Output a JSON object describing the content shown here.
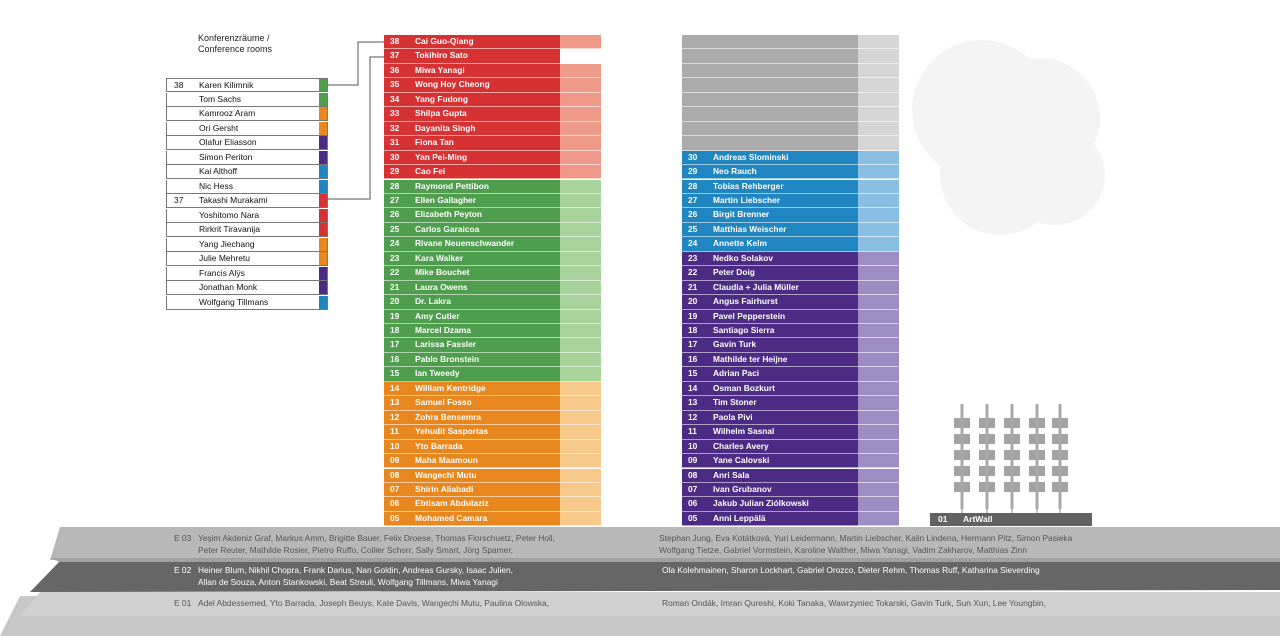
{
  "legend": {
    "title_de": "Konferenzräume /",
    "title_en": "Conference rooms",
    "rows": [
      {
        "num": "38",
        "name": "Karen Kilimnik",
        "color": "#4f9e4d"
      },
      {
        "num": "",
        "name": "Tom Sachs",
        "color": "#4f9e4d"
      },
      {
        "num": "",
        "name": "Kamrooz Aram",
        "color": "#e8871e"
      },
      {
        "num": "",
        "name": "Ori Gersht",
        "color": "#e8871e"
      },
      {
        "num": "",
        "name": "Olafur Eliasson",
        "color": "#4b2b83"
      },
      {
        "num": "",
        "name": "Simon Periton",
        "color": "#4b2b83"
      },
      {
        "num": "",
        "name": "Kai Althoff",
        "color": "#1f86c2"
      },
      {
        "num": "",
        "name": "Nic Hess",
        "color": "#1f86c2"
      },
      {
        "num": "37",
        "name": "Takashi Murakami",
        "color": "#d63234"
      },
      {
        "num": "",
        "name": "Yoshitomo Nara",
        "color": "#d63234"
      },
      {
        "num": "",
        "name": "Rirkrit Tiravanija",
        "color": "#d63234"
      },
      {
        "num": "",
        "name": "Yang Jiechang",
        "color": "#e8871e"
      },
      {
        "num": "",
        "name": "Julie Mehretu",
        "color": "#e8871e"
      },
      {
        "num": "",
        "name": "Francis Alÿs",
        "color": "#4b2b83"
      },
      {
        "num": "",
        "name": "Jonathan Monk",
        "color": "#4b2b83"
      },
      {
        "num": "",
        "name": "Wolfgang Tillmans",
        "color": "#1f86c2"
      }
    ]
  },
  "tower_left": [
    {
      "num": "38",
      "name": "Cai Guo-Qiang",
      "color": "#d63234",
      "tail": "#ef9a88"
    },
    {
      "num": "37",
      "name": "Tokihiro Sato",
      "color": "#d63234",
      "tail": "#ffffff"
    },
    {
      "num": "36",
      "name": "Miwa Yanagi",
      "color": "#d63234",
      "tail": "#ef9a88"
    },
    {
      "num": "35",
      "name": "Wong Hoy Cheong",
      "color": "#d63234",
      "tail": "#ef9a88"
    },
    {
      "num": "34",
      "name": "Yang Fudong",
      "color": "#d63234",
      "tail": "#ef9a88"
    },
    {
      "num": "33",
      "name": "Shilpa Gupta",
      "color": "#d63234",
      "tail": "#ef9a88"
    },
    {
      "num": "32",
      "name": "Dayanita Singh",
      "color": "#d63234",
      "tail": "#ef9a88"
    },
    {
      "num": "31",
      "name": "Fiona Tan",
      "color": "#d63234",
      "tail": "#ef9a88"
    },
    {
      "num": "30",
      "name": "Yan Pei-Ming",
      "color": "#d63234",
      "tail": "#ef9a88"
    },
    {
      "num": "29",
      "name": "Cao Fei",
      "color": "#d63234",
      "tail": "#ef9a88"
    },
    {
      "num": "28",
      "name": "Raymond Pettibon",
      "color": "#4f9e4d",
      "tail": "#a8d39a"
    },
    {
      "num": "27",
      "name": "Ellen Gallagher",
      "color": "#4f9e4d",
      "tail": "#a8d39a"
    },
    {
      "num": "26",
      "name": "Elizabeth Peyton",
      "color": "#4f9e4d",
      "tail": "#a8d39a"
    },
    {
      "num": "25",
      "name": "Carlos Garaicoa",
      "color": "#4f9e4d",
      "tail": "#a8d39a"
    },
    {
      "num": "24",
      "name": "Rivane Neuenschwander",
      "color": "#4f9e4d",
      "tail": "#a8d39a"
    },
    {
      "num": "23",
      "name": "Kara Walker",
      "color": "#4f9e4d",
      "tail": "#a8d39a"
    },
    {
      "num": "22",
      "name": "Mike Bouchet",
      "color": "#4f9e4d",
      "tail": "#a8d39a"
    },
    {
      "num": "21",
      "name": "Laura Owens",
      "color": "#4f9e4d",
      "tail": "#a8d39a"
    },
    {
      "num": "20",
      "name": "Dr. Lakra",
      "color": "#4f9e4d",
      "tail": "#a8d39a"
    },
    {
      "num": "19",
      "name": "Amy Cutler",
      "color": "#4f9e4d",
      "tail": "#a8d39a"
    },
    {
      "num": "18",
      "name": "Marcel Dzama",
      "color": "#4f9e4d",
      "tail": "#a8d39a"
    },
    {
      "num": "17",
      "name": "Larissa Fassler",
      "color": "#4f9e4d",
      "tail": "#a8d39a"
    },
    {
      "num": "16",
      "name": "Pablo Bronstein",
      "color": "#4f9e4d",
      "tail": "#a8d39a"
    },
    {
      "num": "15",
      "name": "Ian Tweedy",
      "color": "#4f9e4d",
      "tail": "#a8d39a"
    },
    {
      "num": "14",
      "name": "William Kentridge",
      "color": "#e8871e",
      "tail": "#f7c98a"
    },
    {
      "num": "13",
      "name": "Samuel Fosso",
      "color": "#e8871e",
      "tail": "#f7c98a"
    },
    {
      "num": "12",
      "name": "Zohra Bensemra",
      "color": "#e8871e",
      "tail": "#f7c98a"
    },
    {
      "num": "11",
      "name": "Yehudit Sasportas",
      "color": "#e8871e",
      "tail": "#f7c98a"
    },
    {
      "num": "10",
      "name": "Yto Barrada",
      "color": "#e8871e",
      "tail": "#f7c98a"
    },
    {
      "num": "09",
      "name": "Maha Maamoun",
      "color": "#e8871e",
      "tail": "#f7c98a"
    },
    {
      "num": "08",
      "name": "Wangechi Mutu",
      "color": "#e8871e",
      "tail": "#f7c98a"
    },
    {
      "num": "07",
      "name": "Shirin Aliabadi",
      "color": "#e8871e",
      "tail": "#f7c98a"
    },
    {
      "num": "06",
      "name": "Ebtisam Abdulaziz",
      "color": "#e8871e",
      "tail": "#f7c98a"
    },
    {
      "num": "05",
      "name": "Mohamed Camara",
      "color": "#e8871e",
      "tail": "#f7c98a"
    }
  ],
  "tower_right": [
    {
      "num": "",
      "name": "",
      "color": "#ababab",
      "tail": "#d6d6d6"
    },
    {
      "num": "",
      "name": "",
      "color": "#ababab",
      "tail": "#d6d6d6"
    },
    {
      "num": "",
      "name": "",
      "color": "#ababab",
      "tail": "#d6d6d6"
    },
    {
      "num": "",
      "name": "",
      "color": "#ababab",
      "tail": "#d6d6d6"
    },
    {
      "num": "",
      "name": "",
      "color": "#ababab",
      "tail": "#d6d6d6"
    },
    {
      "num": "",
      "name": "",
      "color": "#ababab",
      "tail": "#d6d6d6"
    },
    {
      "num": "",
      "name": "",
      "color": "#ababab",
      "tail": "#d6d6d6"
    },
    {
      "num": "",
      "name": "",
      "color": "#ababab",
      "tail": "#d6d6d6"
    },
    {
      "num": "30",
      "name": "Andreas Slominski",
      "color": "#1f86c2",
      "tail": "#89bfe2"
    },
    {
      "num": "29",
      "name": "Neo Rauch",
      "color": "#1f86c2",
      "tail": "#89bfe2"
    },
    {
      "num": "28",
      "name": "Tobias Rehberger",
      "color": "#1f86c2",
      "tail": "#89bfe2"
    },
    {
      "num": "27",
      "name": "Martin Liebscher",
      "color": "#1f86c2",
      "tail": "#89bfe2"
    },
    {
      "num": "26",
      "name": "Birgit Brenner",
      "color": "#1f86c2",
      "tail": "#89bfe2"
    },
    {
      "num": "25",
      "name": "Matthias Weischer",
      "color": "#1f86c2",
      "tail": "#89bfe2"
    },
    {
      "num": "24",
      "name": "Annette Kelm",
      "color": "#1f86c2",
      "tail": "#89bfe2"
    },
    {
      "num": "23",
      "name": "Nedko Solakov",
      "color": "#4b2b83",
      "tail": "#9e8cc4"
    },
    {
      "num": "22",
      "name": "Peter Doig",
      "color": "#4b2b83",
      "tail": "#9e8cc4"
    },
    {
      "num": "21",
      "name": "Claudia + Julia Müller",
      "color": "#4b2b83",
      "tail": "#9e8cc4"
    },
    {
      "num": "20",
      "name": "Angus Fairhurst",
      "color": "#4b2b83",
      "tail": "#9e8cc4"
    },
    {
      "num": "19",
      "name": "Pavel Pepperstein",
      "color": "#4b2b83",
      "tail": "#9e8cc4"
    },
    {
      "num": "18",
      "name": "Santiago Sierra",
      "color": "#4b2b83",
      "tail": "#9e8cc4"
    },
    {
      "num": "17",
      "name": "Gavin Turk",
      "color": "#4b2b83",
      "tail": "#9e8cc4"
    },
    {
      "num": "16",
      "name": "Mathilde ter Heijne",
      "color": "#4b2b83",
      "tail": "#9e8cc4"
    },
    {
      "num": "15",
      "name": "Adrian Paci",
      "color": "#4b2b83",
      "tail": "#9e8cc4"
    },
    {
      "num": "14",
      "name": "Osman Bozkurt",
      "color": "#4b2b83",
      "tail": "#9e8cc4"
    },
    {
      "num": "13",
      "name": "Tim Stoner",
      "color": "#4b2b83",
      "tail": "#9e8cc4"
    },
    {
      "num": "12",
      "name": "Paola Pivi",
      "color": "#4b2b83",
      "tail": "#9e8cc4"
    },
    {
      "num": "11",
      "name": "Wilhelm Sasnal",
      "color": "#4b2b83",
      "tail": "#9e8cc4"
    },
    {
      "num": "10",
      "name": "Charles Avery",
      "color": "#4b2b83",
      "tail": "#9e8cc4"
    },
    {
      "num": "09",
      "name": "Yane Calovski",
      "color": "#4b2b83",
      "tail": "#9e8cc4"
    },
    {
      "num": "08",
      "name": "Anri Sala",
      "color": "#4b2b83",
      "tail": "#9e8cc4"
    },
    {
      "num": "07",
      "name": "Ivan Grubanov",
      "color": "#4b2b83",
      "tail": "#9e8cc4"
    },
    {
      "num": "06",
      "name": "Jakub Julian Ziólkowski",
      "color": "#4b2b83",
      "tail": "#9e8cc4"
    },
    {
      "num": "05",
      "name": "Anni Leppälä",
      "color": "#4b2b83",
      "tail": "#9e8cc4"
    }
  ],
  "artwall": {
    "num": "01",
    "name": "ArtWall"
  },
  "floors": {
    "e03": {
      "label": "E 03",
      "left_line1": "Yeşim Akdeniz Graf, Markus Amm, Brigitte Bauer, Felix Droese, Thomas Florschuetz, Peter Holl,",
      "left_line2": "Peter Reuter, Mathilde Rosier, Pietro Ruffo, Collier Schorr, Sally Smart, Jörg Spamer,",
      "right_line1": "Stephan Jung, Eva Kotátková, Yuri Leidermann, Martin Liebscher, Kalin Lindena, Hermann Pitz, Simon Pasieka",
      "right_line2": "Wolfgang Tietze, Gabriel Vormstein, Karoline Walther, Miwa Yanagi, Vadim Zakharov, Matthias Zinn"
    },
    "e02": {
      "label": "E 02",
      "left_line1": "Heiner Blum, Nikhil Chopra, Frank Darius, Nan Goldin, Andreas Gursky, Isaac Julien,",
      "left_line2": "Allan de Souza, Anton Stankowski, Beat Streuli, Wolfgang Tillmans, Miwa Yanagi",
      "right_line1": "Ola Kolehmainen, Sharon Lockhart, Gabriel Orozco, Dieter Rehm, Thomas Ruff, Katharina Sieverding"
    },
    "e01": {
      "label": "E 01",
      "left_line1": "Adel Abdessemed, Yto Barrada, Joseph Beuys, Kate Davis, Wangechi Mutu, Paulina Olowska,",
      "right_line1": "Roman Ondák, Imran Qureshi, Koki Tanaka, Wawrzyniec Tokarski, Gavin Turk, Sun Xun, Lee Youngbin,"
    }
  },
  "colors": {
    "slab_light": "#bdbdbd",
    "slab_mid": "#a5a5a5",
    "slab_dark": "#666666",
    "cloud": "#f4f4f4"
  }
}
